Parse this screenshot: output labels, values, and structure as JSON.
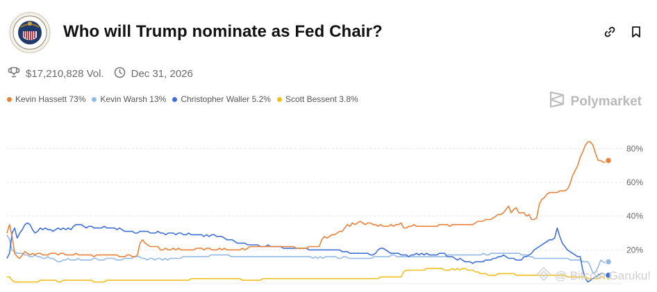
{
  "header": {
    "title": "Who will Trump nominate as Fed Chair?",
    "logo_icon": "federal-reserve-seal-icon",
    "actions": [
      {
        "name": "link-icon",
        "label": "Copy link"
      },
      {
        "name": "bookmark-icon",
        "label": "Bookmark"
      }
    ]
  },
  "meta": {
    "volume": "$17,210,828 Vol.",
    "end_date": "Dec 31, 2026"
  },
  "legend": [
    {
      "label": "Kevin Hassett 73%",
      "color": "#e8823a"
    },
    {
      "label": "Kevin Warsh 13%",
      "color": "#93b8e4"
    },
    {
      "label": "Christopher Waller 5.2%",
      "color": "#3f6fd4"
    },
    {
      "label": "Scott Bessent 3.8%",
      "color": "#f0bf1c"
    }
  ],
  "brand": {
    "name": "Polymarket"
  },
  "watermark": {
    "text": "@ Bitcoin Garuku!"
  },
  "chart_data": {
    "type": "line",
    "ylim": [
      0,
      90
    ],
    "yticks": [
      20,
      40,
      60,
      80
    ],
    "ytick_labels": [
      "20%",
      "40%",
      "60%",
      "80%"
    ],
    "grid": true,
    "legend_position": "top-left",
    "series": [
      {
        "name": "Kevin Hassett",
        "color": "#e8823a",
        "end_label": "73%",
        "values": [
          30,
          35,
          28,
          18,
          16,
          15,
          17,
          19,
          18,
          17,
          18,
          17,
          18,
          18,
          17,
          17,
          17,
          18,
          18,
          18,
          17,
          18,
          18,
          17,
          17,
          17,
          17,
          18,
          17,
          17,
          17,
          17,
          17,
          17,
          16,
          17,
          17,
          17,
          17,
          17,
          17,
          17,
          17,
          17,
          16,
          16,
          16,
          17,
          17,
          16,
          16,
          17,
          24,
          26,
          24,
          23,
          22,
          22,
          22,
          22,
          20,
          20,
          21,
          20,
          20,
          21,
          20,
          21,
          20,
          20,
          20,
          20,
          20,
          20,
          21,
          21,
          21,
          20,
          21,
          21,
          20,
          20,
          20,
          21,
          20,
          21,
          20,
          20,
          20,
          20,
          20,
          20,
          21,
          20,
          21,
          22,
          22,
          22,
          22,
          22,
          22,
          22,
          22,
          22,
          22,
          22,
          22,
          22,
          22,
          22,
          22,
          22,
          22,
          21,
          21,
          21,
          21,
          21,
          22,
          22,
          22,
          22,
          22,
          26,
          28,
          27,
          28,
          29,
          29,
          30,
          31,
          31,
          33,
          35,
          34,
          36,
          35,
          36,
          37,
          36,
          35,
          36,
          36,
          35,
          35,
          34,
          35,
          34,
          34,
          34,
          35,
          34,
          35,
          35,
          36,
          33,
          33,
          34,
          34,
          35,
          34,
          34,
          34,
          34,
          34,
          34,
          34,
          34,
          34,
          35,
          35,
          35,
          35,
          34,
          35,
          35,
          35,
          35,
          35,
          35,
          35,
          35,
          35,
          36,
          37,
          37,
          37,
          38,
          38,
          38,
          39,
          40,
          41,
          41,
          42,
          44,
          46,
          42,
          44,
          45,
          42,
          42,
          42,
          40,
          41,
          38,
          38,
          39,
          47,
          50,
          51,
          53,
          54,
          54,
          54,
          54,
          55,
          55,
          55,
          56,
          59,
          64,
          67,
          70,
          75,
          78,
          82,
          84,
          84,
          82,
          77,
          73,
          73,
          72,
          72,
          73
        ]
      },
      {
        "name": "Kevin Warsh",
        "color": "#93b8e4",
        "end_label": "13%",
        "values": [
          29,
          26,
          20,
          19,
          18,
          18,
          18,
          17,
          17,
          16,
          16,
          17,
          16,
          16,
          15,
          15,
          16,
          15,
          15,
          14,
          13,
          13,
          14,
          14,
          15,
          14,
          14,
          14,
          15,
          14,
          14,
          14,
          14,
          14,
          15,
          15,
          14,
          14,
          14,
          15,
          15,
          15,
          15,
          14,
          14,
          14,
          15,
          15,
          15,
          15,
          16,
          16,
          16,
          15,
          15,
          14,
          15,
          15,
          14,
          15,
          15,
          14,
          15,
          14,
          15,
          15,
          15,
          15,
          15,
          16,
          16,
          16,
          16,
          16,
          16,
          16,
          16,
          16,
          16,
          16,
          17,
          17,
          17,
          17,
          17,
          17,
          17,
          17,
          16,
          16,
          16,
          16,
          16,
          16,
          16,
          16,
          16,
          16,
          16,
          16,
          16,
          16,
          16,
          16,
          16,
          16,
          16,
          16,
          16,
          16,
          16,
          16,
          16,
          16,
          16,
          16,
          16,
          16,
          16,
          16,
          15,
          16,
          15,
          16,
          15,
          16,
          16,
          16,
          16,
          16,
          15,
          15,
          16,
          16,
          15,
          15,
          15,
          15,
          15,
          15,
          15,
          15,
          15,
          15,
          16,
          16,
          16,
          16,
          16,
          16,
          16,
          17,
          17,
          16,
          16,
          16,
          16,
          16,
          16,
          16,
          16,
          16,
          16,
          16,
          16,
          16,
          16,
          16,
          16,
          16,
          16,
          16,
          16,
          17,
          17,
          17,
          17,
          17,
          17,
          17,
          17,
          17,
          17,
          17,
          17,
          17,
          17,
          18,
          17,
          17,
          18,
          18,
          18,
          18,
          18,
          18,
          18,
          18,
          18,
          18,
          18,
          18,
          17,
          17,
          17,
          16,
          16,
          15,
          15,
          15,
          15,
          15,
          15,
          15,
          15,
          15,
          15,
          15,
          15,
          15,
          15,
          14,
          14,
          14,
          14,
          14,
          13,
          13,
          13,
          10,
          6,
          7,
          10,
          14,
          13,
          12,
          13
        ]
      },
      {
        "name": "Christopher Waller",
        "color": "#3f6fd4",
        "end_label": "5.2%",
        "values": [
          15,
          18,
          30,
          33,
          27,
          30,
          32,
          35,
          36,
          35,
          32,
          30,
          31,
          33,
          32,
          33,
          32,
          32,
          31,
          32,
          33,
          32,
          33,
          32,
          33,
          32,
          34,
          35,
          35,
          35,
          34,
          33,
          34,
          34,
          33,
          33,
          33,
          33,
          34,
          33,
          33,
          33,
          33,
          32,
          33,
          32,
          31,
          31,
          31,
          31,
          30,
          30,
          31,
          31,
          31,
          31,
          30,
          30,
          30,
          31,
          30,
          30,
          29,
          30,
          30,
          30,
          29,
          30,
          30,
          29,
          29,
          30,
          29,
          29,
          29,
          29,
          29,
          28,
          29,
          28,
          29,
          29,
          28,
          28,
          28,
          27,
          26,
          26,
          26,
          25,
          24,
          24,
          24,
          24,
          23,
          23,
          23,
          23,
          23,
          22,
          22,
          22,
          23,
          22,
          22,
          22,
          22,
          22,
          21,
          21,
          21,
          21,
          21,
          21,
          21,
          21,
          21,
          21,
          20,
          20,
          20,
          20,
          20,
          20,
          20,
          20,
          20,
          20,
          20,
          20,
          20,
          19,
          19,
          19,
          18,
          18,
          18,
          18,
          18,
          18,
          18,
          18,
          17,
          17,
          18,
          20,
          21,
          21,
          20,
          19,
          18,
          18,
          18,
          18,
          17,
          17,
          17,
          16,
          17,
          17,
          18,
          17,
          18,
          17,
          18,
          17,
          17,
          17,
          17,
          18,
          18,
          18,
          16,
          16,
          16,
          15,
          14,
          15,
          14,
          13,
          13,
          13,
          12,
          13,
          13,
          13,
          13,
          14,
          14,
          14,
          15,
          15,
          16,
          16,
          17,
          16,
          15,
          15,
          15,
          14,
          14,
          14,
          16,
          16,
          17,
          18,
          20,
          21,
          22,
          23,
          24,
          25,
          26,
          26,
          27,
          33,
          28,
          24,
          22,
          20,
          19,
          18,
          17,
          16,
          16,
          8,
          3,
          1,
          2,
          3,
          4,
          5,
          6,
          6,
          5,
          5
        ]
      },
      {
        "name": "Scott Bessent",
        "color": "#f0bf1c",
        "end_label": "3.8%",
        "values": [
          4,
          4,
          2,
          1,
          1,
          1,
          1,
          1,
          1,
          1,
          1,
          1,
          1,
          2,
          2,
          2,
          2,
          2,
          2,
          2,
          1,
          1,
          2,
          2,
          2,
          2,
          2,
          2,
          2,
          2,
          2,
          2,
          2,
          2,
          1,
          1,
          1,
          1,
          1,
          2,
          2,
          2,
          2,
          2,
          2,
          2,
          2,
          2,
          2,
          2,
          2,
          2,
          2,
          2,
          2,
          2,
          2,
          2,
          2,
          2,
          2,
          2,
          2,
          2,
          2,
          2,
          2,
          2,
          2,
          2,
          2,
          2,
          3,
          3,
          3,
          3,
          3,
          3,
          3,
          3,
          3,
          3,
          3,
          3,
          3,
          3,
          3,
          3,
          3,
          3,
          3,
          3,
          2,
          2,
          2,
          2,
          2,
          2,
          2,
          2,
          3,
          3,
          3,
          3,
          3,
          3,
          3,
          3,
          3,
          3,
          3,
          3,
          3,
          3,
          3,
          3,
          3,
          3,
          3,
          3,
          3,
          3,
          3,
          3,
          3,
          3,
          3,
          3,
          3,
          3,
          3,
          3,
          3,
          3,
          3,
          3,
          3,
          3,
          3,
          3,
          3,
          3,
          3,
          3,
          3,
          3,
          4,
          4,
          4,
          4,
          4,
          4,
          4,
          4,
          4,
          7,
          8,
          8,
          8,
          8,
          8,
          8,
          8,
          8,
          9,
          9,
          9,
          9,
          9,
          9,
          9,
          8,
          8,
          8,
          9,
          8,
          9,
          8,
          9,
          9,
          8,
          8,
          8,
          7,
          7,
          6,
          6,
          6,
          5,
          5,
          5,
          5,
          6,
          6,
          6,
          6,
          6,
          6,
          6,
          5,
          5,
          5,
          5,
          5,
          5,
          5,
          5,
          5,
          5,
          5,
          5,
          5,
          5,
          5,
          5,
          5,
          5,
          5,
          5,
          4,
          4,
          4,
          4,
          4,
          4,
          4,
          4,
          3,
          3,
          3,
          3,
          3,
          4,
          4,
          3,
          4
        ]
      }
    ]
  }
}
